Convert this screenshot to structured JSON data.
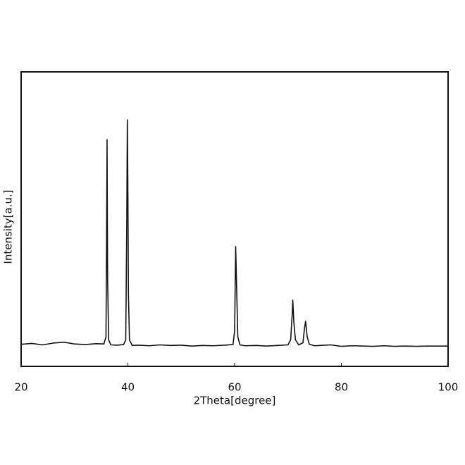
{
  "chart_data": {
    "type": "line",
    "xlabel": "2Theta[degree]",
    "ylabel": "Intensity[a.u.]",
    "x": [
      20,
      22,
      24,
      26,
      28,
      30,
      32,
      34,
      35.5,
      35.9,
      36.0,
      36.1,
      36.2,
      36.4,
      36.8,
      38,
      39.2,
      39.6,
      39.8,
      39.9,
      40.0,
      40.1,
      40.3,
      40.8,
      42,
      44,
      46,
      48,
      50,
      52,
      54,
      56,
      58,
      59.7,
      60.0,
      60.2,
      60.4,
      60.6,
      61.0,
      62,
      64,
      66,
      68,
      70,
      70.5,
      70.8,
      70.9,
      71.1,
      71.4,
      72,
      72.8,
      73.1,
      73.3,
      73.6,
      74,
      75,
      76,
      78,
      80,
      82,
      84,
      86,
      88,
      90,
      92,
      94,
      96,
      98,
      100
    ],
    "values": [
      7.5,
      7.8,
      7.3,
      7.9,
      8.2,
      7.6,
      7.4,
      7.7,
      7.6,
      10,
      40,
      77,
      30,
      9,
      7.3,
      7.2,
      7.4,
      9,
      50,
      83.7,
      60,
      25,
      9,
      7.1,
      7.2,
      7.0,
      7.3,
      7.1,
      7.2,
      6.9,
      7.1,
      7.0,
      7.2,
      7.4,
      12,
      40.7,
      25,
      10,
      7.3,
      7.0,
      7.1,
      6.9,
      7.1,
      7.3,
      9,
      18,
      22.5,
      15,
      9,
      7.3,
      8,
      13,
      15.3,
      10,
      7.5,
      7.0,
      7.1,
      7.3,
      6.8,
      7.0,
      6.9,
      6.8,
      7.0,
      6.8,
      6.9,
      6.8,
      6.9,
      6.9,
      6.9
    ],
    "color": "#111111",
    "xlim": [
      20,
      100
    ],
    "xticks": [
      20,
      40,
      60,
      80,
      100
    ],
    "ylim": [
      0,
      100
    ]
  }
}
